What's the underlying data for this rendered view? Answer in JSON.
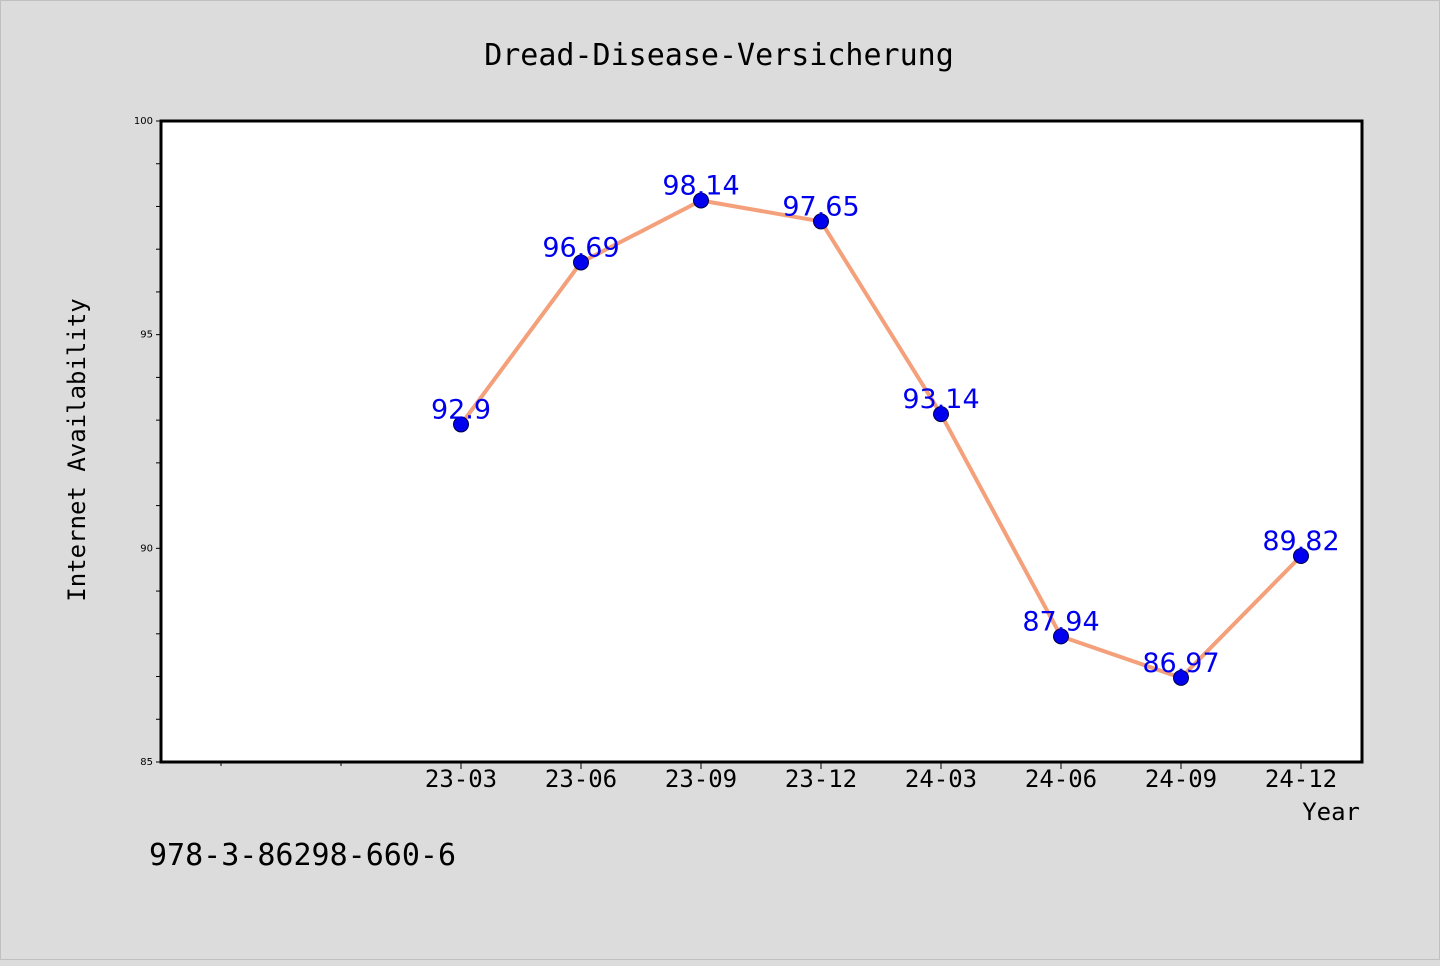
{
  "chart_data": {
    "type": "line",
    "title": "Dread-Disease-Versicherung",
    "xlabel": "Year",
    "ylabel": "Internet Availability",
    "categories": [
      "23-03",
      "23-06",
      "23-09",
      "23-12",
      "24-03",
      "24-06",
      "24-09",
      "24-12"
    ],
    "series": [
      {
        "values": [
          92.9,
          96.69,
          98.14,
          97.65,
          93.14,
          87.94,
          86.97,
          89.82
        ],
        "data_labels": [
          "92.9",
          "96.69",
          "98.14",
          "97.65",
          "93.14",
          "87.94",
          "86.97",
          "89.82"
        ],
        "line_color": "#f4a07a",
        "marker_color": "#0000ee",
        "label_color": "#0000ee"
      }
    ],
    "ylim": [
      85,
      100
    ],
    "yticks": [
      "85",
      "90",
      "95",
      "100"
    ],
    "grid": false,
    "legend": "none"
  },
  "footer": {
    "text": "978-3-86298-660-6"
  },
  "colors": {
    "background": "#dcdcdc",
    "plot_background": "#ffffff"
  }
}
